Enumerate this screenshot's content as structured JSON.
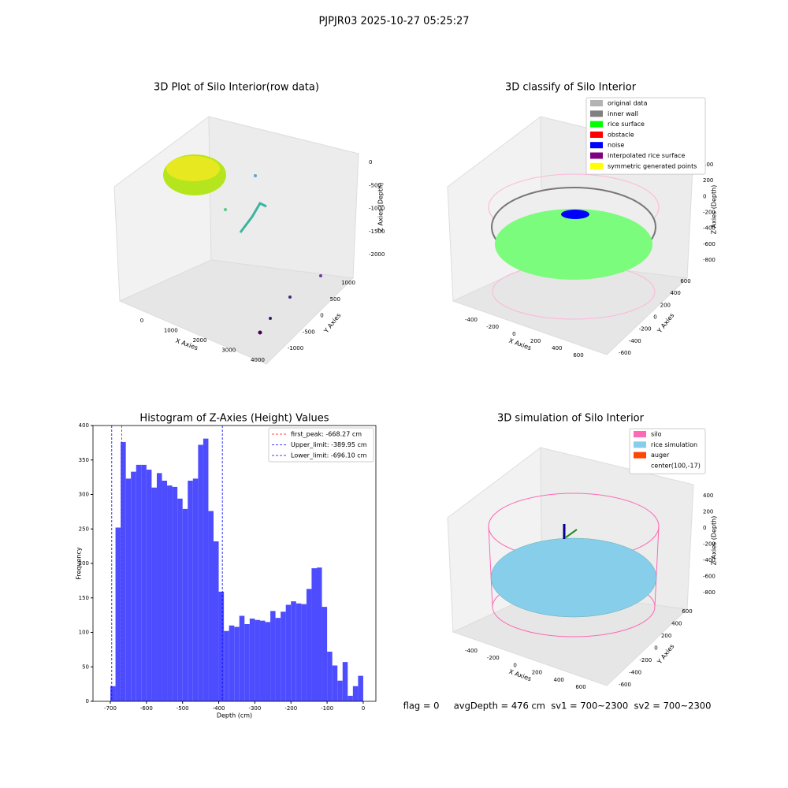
{
  "suptitle": "PJPJR03 2025-10-27 05:25:27",
  "footer": "flag = 0     avgDepth = 476 cm  sv1 = 700~2300  sv2 = 700~2300",
  "chart_data": [
    {
      "type": "scatter3d",
      "title": "3D Plot of Silo Interior(row data)",
      "xlabel": "X Axies",
      "ylabel": "Y Axies",
      "zlabel": "Z Axies (Depth)",
      "xticks": [
        0,
        1000,
        2000,
        3000,
        4000
      ],
      "yticks": [
        -1000,
        -500,
        0,
        500,
        1000
      ],
      "zticks": [
        0,
        -500,
        -1000,
        -1500,
        -2000
      ]
    },
    {
      "type": "scatter3d",
      "title": "3D classify of Silo Interior",
      "xlabel": "X Axies",
      "ylabel": "Y Axies",
      "zlabel": "Z Axies (Depth)",
      "xticks": [
        -400,
        -200,
        0,
        200,
        400,
        600
      ],
      "yticks": [
        -600,
        -400,
        -200,
        0,
        200,
        400,
        600
      ],
      "zticks": [
        400,
        200,
        0,
        -200,
        -400,
        -600,
        -800
      ],
      "legend": [
        {
          "name": "original data",
          "color": "#b3b3b3"
        },
        {
          "name": "inner wall",
          "color": "#808080"
        },
        {
          "name": "rice surface",
          "color": "#00ff00"
        },
        {
          "name": "obstacle",
          "color": "#ff0000"
        },
        {
          "name": "noise",
          "color": "#0000ff"
        },
        {
          "name": "interpolated rice surface",
          "color": "#800080"
        },
        {
          "name": "symmetric generated points",
          "color": "#ffff00"
        }
      ]
    },
    {
      "type": "histogram",
      "title": "Histogram of Z-Axies (Height) Values",
      "xlabel": "Depth (cm)",
      "ylabel": "Frequency",
      "color": "#4d4dff",
      "bins": [
        -700,
        -685.7,
        -671.4,
        -657.1,
        -642.9,
        -628.6,
        -614.3,
        -600,
        -585.7,
        -571.4,
        -557.1,
        -542.9,
        -528.6,
        -514.3,
        -500,
        -485.7,
        -471.4,
        -457.1,
        -442.9,
        -428.6,
        -414.3,
        -400,
        -385.7,
        -371.4,
        -357.1,
        -342.9,
        -328.6,
        -314.3,
        -300,
        -285.7,
        -271.4,
        -257.1,
        -242.9,
        -228.6,
        -214.3,
        -200,
        -185.7,
        -171.4,
        -157.1,
        -142.9,
        -128.6,
        -114.3,
        -100,
        -85.7,
        -71.4,
        -57.1,
        -42.9,
        -28.6,
        -14.3,
        0
      ],
      "values": [
        22,
        252,
        376,
        323,
        333,
        343,
        343,
        336,
        310,
        331,
        320,
        313,
        311,
        294,
        279,
        320,
        323,
        372,
        381,
        276,
        232,
        159,
        102,
        110,
        108,
        124,
        112,
        120,
        118,
        117,
        115,
        131,
        121,
        130,
        140,
        145,
        142,
        141,
        163,
        193,
        194,
        137,
        72,
        52,
        30,
        57,
        8,
        22,
        37
      ],
      "xlim": [
        -748,
        35
      ],
      "ylim": [
        0,
        400
      ],
      "xticks": [
        -700,
        -600,
        -500,
        -400,
        -300,
        -200,
        -100,
        0
      ],
      "yticks": [
        0,
        50,
        100,
        150,
        200,
        250,
        300,
        350,
        400
      ],
      "vlines": [
        {
          "name": "first_peak: -668.27 cm",
          "value": -668.27,
          "color": "#ff0000"
        },
        {
          "name": "Upper_limit: -389.95 cm",
          "value": -389.95,
          "color": "#0000ff"
        },
        {
          "name": "Lower_limit: -696.10 cm",
          "value": -696.1,
          "color": "#0000ff"
        }
      ]
    },
    {
      "type": "scatter3d",
      "title": "3D simulation of Silo Interior",
      "xlabel": "X Axies",
      "ylabel": "Y Axies",
      "zlabel": "Z Axies (Depth)",
      "xticks": [
        -400,
        -200,
        0,
        200,
        400,
        600
      ],
      "yticks": [
        -600,
        -400,
        -200,
        0,
        200,
        400,
        600
      ],
      "zticks": [
        400,
        200,
        0,
        -200,
        -400,
        -600,
        -800
      ],
      "legend": [
        {
          "name": "silo",
          "color": "#ff69b4"
        },
        {
          "name": "rice simulation",
          "color": "#87ceeb"
        },
        {
          "name": "auger",
          "color": "#ff4500"
        },
        {
          "name": "center(100,-17)"
        }
      ]
    }
  ]
}
